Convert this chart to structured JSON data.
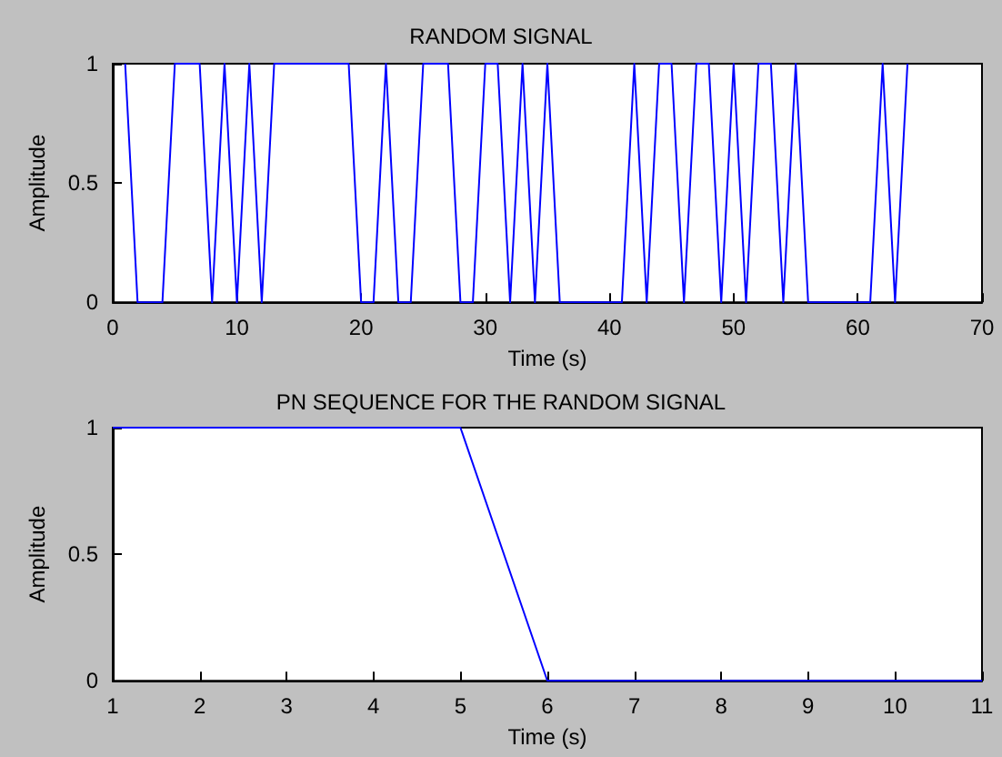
{
  "chart_data": [
    {
      "type": "line",
      "title": "RANDOM SIGNAL",
      "xlabel": "Time (s)",
      "ylabel": "Amplitude",
      "x": [
        1,
        2,
        3,
        4,
        5,
        6,
        7,
        8,
        9,
        10,
        11,
        12,
        13,
        14,
        15,
        16,
        17,
        18,
        19,
        20,
        21,
        22,
        23,
        24,
        25,
        26,
        27,
        28,
        29,
        30,
        31,
        32,
        33,
        34,
        35,
        36,
        37,
        38,
        39,
        40,
        41,
        42,
        43,
        44,
        45,
        46,
        47,
        48,
        49,
        50,
        51,
        52,
        53,
        54,
        55,
        56,
        57,
        58,
        59,
        60,
        61,
        62,
        63,
        64
      ],
      "series": [
        {
          "color": "#0000ff",
          "values": [
            1,
            0,
            0,
            0,
            1,
            1,
            1,
            0,
            1,
            0,
            1,
            0,
            1,
            1,
            1,
            1,
            1,
            1,
            1,
            0,
            0,
            1,
            0,
            0,
            1,
            1,
            1,
            0,
            0,
            1,
            1,
            0,
            1,
            0,
            1,
            0,
            0,
            0,
            0,
            0,
            0,
            1,
            0,
            1,
            1,
            0,
            1,
            1,
            0,
            1,
            0,
            1,
            1,
            0,
            1,
            0,
            0,
            0,
            0,
            0,
            0,
            1,
            0,
            1
          ]
        }
      ],
      "xlim": [
        0,
        70
      ],
      "xticks": [
        0,
        10,
        20,
        30,
        40,
        50,
        60,
        70
      ],
      "ylim": [
        0,
        1
      ],
      "yticks": [
        0,
        0.5,
        1
      ],
      "grid": false,
      "marker": "none",
      "line_style": "solid"
    },
    {
      "type": "line",
      "title": "PN SEQUENCE FOR THE RANDOM SIGNAL",
      "xlabel": "Time (s)",
      "ylabel": "Amplitude",
      "x": [
        1,
        2,
        3,
        4,
        5,
        6,
        7,
        8,
        9,
        10,
        11
      ],
      "series": [
        {
          "color": "#0000ff",
          "values": [
            1,
            1,
            1,
            1,
            1,
            0,
            0,
            0,
            0,
            0,
            0
          ]
        }
      ],
      "xlim": [
        1,
        11
      ],
      "xticks": [
        1,
        2,
        3,
        4,
        5,
        6,
        7,
        8,
        9,
        10,
        11
      ],
      "ylim": [
        0,
        1
      ],
      "yticks": [
        0,
        0.5,
        1
      ],
      "grid": false,
      "marker": "none",
      "line_style": "solid"
    }
  ]
}
